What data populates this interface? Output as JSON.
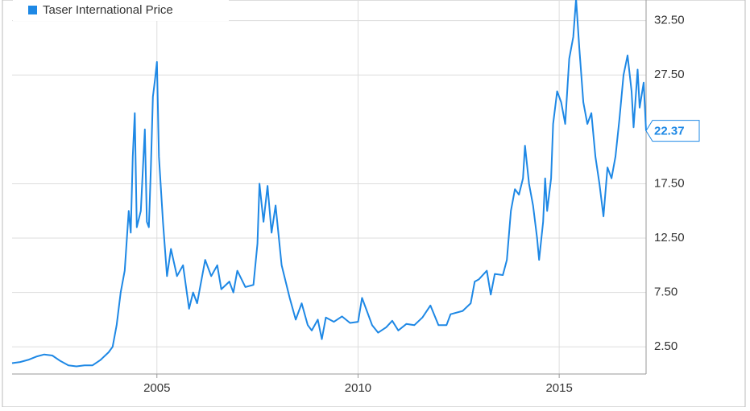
{
  "chart_data": {
    "type": "line",
    "x": [
      2001.4,
      2001.6,
      2001.8,
      2002.0,
      2002.2,
      2002.4,
      2002.6,
      2002.8,
      2003.0,
      2003.2,
      2003.4,
      2003.6,
      2003.8,
      2003.9,
      2004.0,
      2004.1,
      2004.2,
      2004.3,
      2004.35,
      2004.4,
      2004.45,
      2004.5,
      2004.6,
      2004.7,
      2004.75,
      2004.8,
      2004.85,
      2004.9,
      2004.95,
      2005.0,
      2005.05,
      2005.15,
      2005.25,
      2005.35,
      2005.5,
      2005.65,
      2005.8,
      2005.9,
      2006.0,
      2006.1,
      2006.2,
      2006.35,
      2006.5,
      2006.6,
      2006.8,
      2006.9,
      2007.0,
      2007.2,
      2007.4,
      2007.5,
      2007.55,
      2007.65,
      2007.75,
      2007.85,
      2007.95,
      2008.1,
      2008.3,
      2008.45,
      2008.6,
      2008.75,
      2008.85,
      2009.0,
      2009.1,
      2009.2,
      2009.4,
      2009.6,
      2009.8,
      2010.0,
      2010.1,
      2010.2,
      2010.35,
      2010.5,
      2010.7,
      2010.85,
      2011.0,
      2011.2,
      2011.4,
      2011.6,
      2011.8,
      2012.0,
      2012.2,
      2012.3,
      2012.6,
      2012.8,
      2012.9,
      2013.0,
      2013.2,
      2013.3,
      2013.4,
      2013.6,
      2013.7,
      2013.8,
      2013.9,
      2014.0,
      2014.1,
      2014.15,
      2014.25,
      2014.35,
      2014.45,
      2014.5,
      2014.6,
      2014.65,
      2014.7,
      2014.8,
      2014.85,
      2014.95,
      2015.05,
      2015.15,
      2015.25,
      2015.35,
      2015.42,
      2015.5,
      2015.6,
      2015.7,
      2015.8,
      2015.9,
      2016.0,
      2016.1,
      2016.2,
      2016.3,
      2016.4,
      2016.5,
      2016.6,
      2016.7,
      2016.8,
      2016.85,
      2016.95,
      2017.0,
      2017.1,
      2017.16
    ],
    "series": [
      {
        "name": "Taser International Price",
        "color": "#1e88e5",
        "values": [
          1.0,
          1.1,
          1.3,
          1.6,
          1.8,
          1.7,
          1.2,
          0.8,
          0.7,
          0.8,
          0.8,
          1.3,
          2.0,
          2.5,
          4.5,
          7.5,
          9.5,
          15,
          13,
          20,
          24,
          13.5,
          15,
          22.5,
          14,
          13.5,
          19,
          25.5,
          27,
          28.7,
          20,
          14,
          9,
          11.5,
          9,
          10,
          6,
          7.5,
          6.5,
          8.5,
          10.5,
          9,
          10,
          7.8,
          8.5,
          7.5,
          9.5,
          8,
          8.2,
          12,
          17.5,
          14,
          17.3,
          13,
          15.5,
          10,
          7,
          5,
          6.5,
          4.5,
          4,
          5,
          3.2,
          5.2,
          4.8,
          5.3,
          4.7,
          4.8,
          7,
          6,
          4.5,
          3.8,
          4.3,
          4.9,
          4.0,
          4.6,
          4.5,
          5.2,
          6.3,
          4.5,
          4.5,
          5.5,
          5.8,
          6.5,
          8.5,
          8.7,
          9.5,
          7.3,
          9.2,
          9.1,
          10.5,
          15,
          17,
          16.5,
          18,
          21,
          17.5,
          15.5,
          12.5,
          10.5,
          14,
          18,
          15,
          18,
          23,
          26,
          25,
          23,
          29,
          31,
          34.5,
          30,
          25,
          23,
          24,
          20,
          17.5,
          14.5,
          19,
          18,
          20,
          23.5,
          27.5,
          29.3,
          26,
          22.7,
          28,
          24.5,
          26.8,
          22.37
        ]
      }
    ],
    "xlim": [
      2001.4,
      2017.16
    ],
    "xticks": [
      2005,
      2010,
      2015
    ],
    "ylim": [
      0,
      34.4
    ],
    "yticks": [
      {
        "value": 2.5,
        "label": "2.50"
      },
      {
        "value": 7.5,
        "label": "7.50"
      },
      {
        "value": 12.5,
        "label": "12.50"
      },
      {
        "value": 17.5,
        "label": "17.50"
      },
      {
        "value": 27.5,
        "label": "27.50"
      },
      {
        "value": 32.5,
        "label": "32.50"
      }
    ],
    "grid": true
  }
}
